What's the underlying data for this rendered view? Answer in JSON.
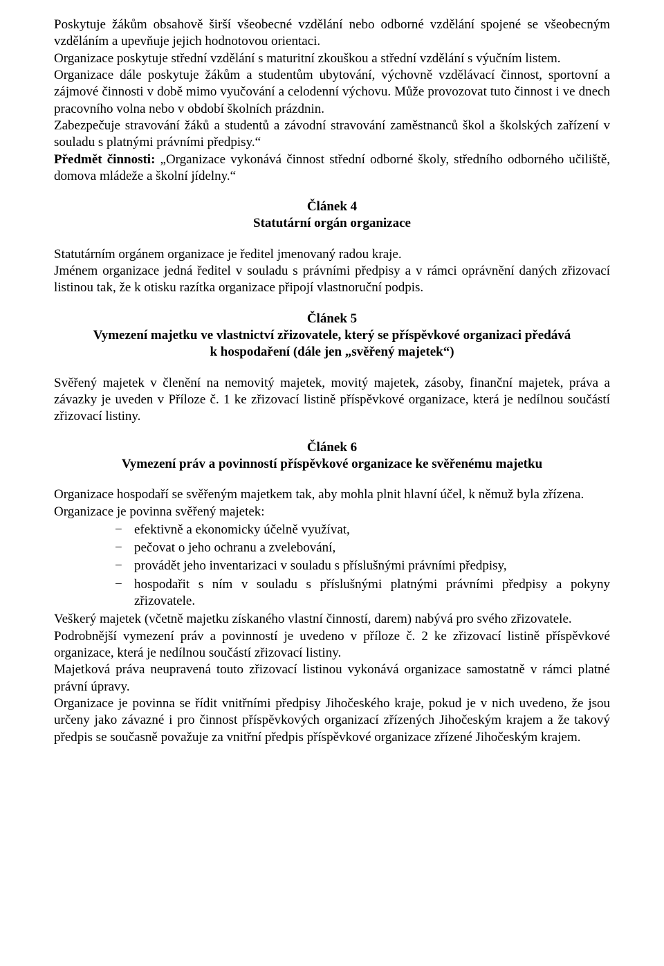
{
  "intro": {
    "p1": "Poskytuje žákům obsahově širší všeobecné vzdělání nebo odborné vzdělání spojené se všeobecným vzděláním a upevňuje jejich hodnotovou orientaci.",
    "p2": "Organizace poskytuje střední vzdělání s maturitní zkouškou a střední vzdělání s výučním listem.",
    "p3": "Organizace dále poskytuje žákům a studentům ubytování, výchovně vzdělávací činnost, sportovní a zájmové činnosti v době mimo vyučování a celodenní výchovu. Může provozovat tuto činnost i ve dnech pracovního volna nebo v období školních prázdnin.",
    "p4": "Zabezpečuje stravování žáků a studentů a závodní stravování zaměstnanců škol a školských zařízení v souladu s platnými právními předpisy.“",
    "p5_label": "Předmět činnosti:",
    "p5_text": " „Organizace vykonává činnost střední odborné školy, středního odborného učiliště, domova mládeže a školní jídelny.“"
  },
  "article4": {
    "header": "Článek 4",
    "title": "Statutární orgán organizace",
    "p1": "Statutárním orgánem organizace je ředitel jmenovaný radou kraje.",
    "p2": "Jménem organizace jedná ředitel v souladu s právními předpisy a v rámci oprávnění daných zřizovací listinou tak, že k otisku razítka organizace připojí vlastnoruční podpis."
  },
  "article5": {
    "header": "Článek 5",
    "title1": "Vymezení majetku ve vlastnictví zřizovatele, který se příspěvkové organizaci předává",
    "title2": "k hospodaření (dále jen „svěřený majetek“)",
    "p1": "Svěřený majetek v členění na nemovitý majetek, movitý majetek, zásoby, finanční majetek, práva a závazky je uveden v Příloze č. 1 ke zřizovací listině příspěvkové organizace, která je nedílnou součástí zřizovací listiny."
  },
  "article6": {
    "header": "Článek 6",
    "title": "Vymezení práv a povinností příspěvkové organizace ke svěřenému majetku",
    "p1": "Organizace hospodaří se svěřeným majetkem tak, aby mohla plnit hlavní účel, k němuž byla zřízena.",
    "p2": "Organizace je povinna svěřený majetek:",
    "list": [
      "efektivně a ekonomicky účelně využívat,",
      "pečovat o jeho ochranu a zvelebování,",
      "provádět jeho inventarizaci v souladu s příslušnými právními předpisy,",
      "hospodařit s ním v souladu s příslušnými platnými právními předpisy a pokyny zřizovatele."
    ],
    "p3": "Veškerý majetek (včetně majetku získaného vlastní činností, darem) nabývá pro svého zřizovatele.",
    "p4": "Podrobnější vymezení práv a povinností je uvedeno v příloze č. 2 ke zřizovací listině příspěvkové organizace, která je nedílnou součástí zřizovací listiny.",
    "p5": "Majetková práva neupravená touto zřizovací listinou vykonává organizace samostatně v rámci platné právní úpravy.",
    "p6": "Organizace je povinna se řídit vnitřními předpisy Jihočeského kraje, pokud je v nich uvedeno, že jsou určeny jako závazné i pro činnost příspěvkových organizací zřízených Jihočeským krajem a že takový předpis se současně považuje za vnitřní předpis příspěvkové organizace zřízené Jihočeským krajem."
  },
  "list_marker": "−"
}
